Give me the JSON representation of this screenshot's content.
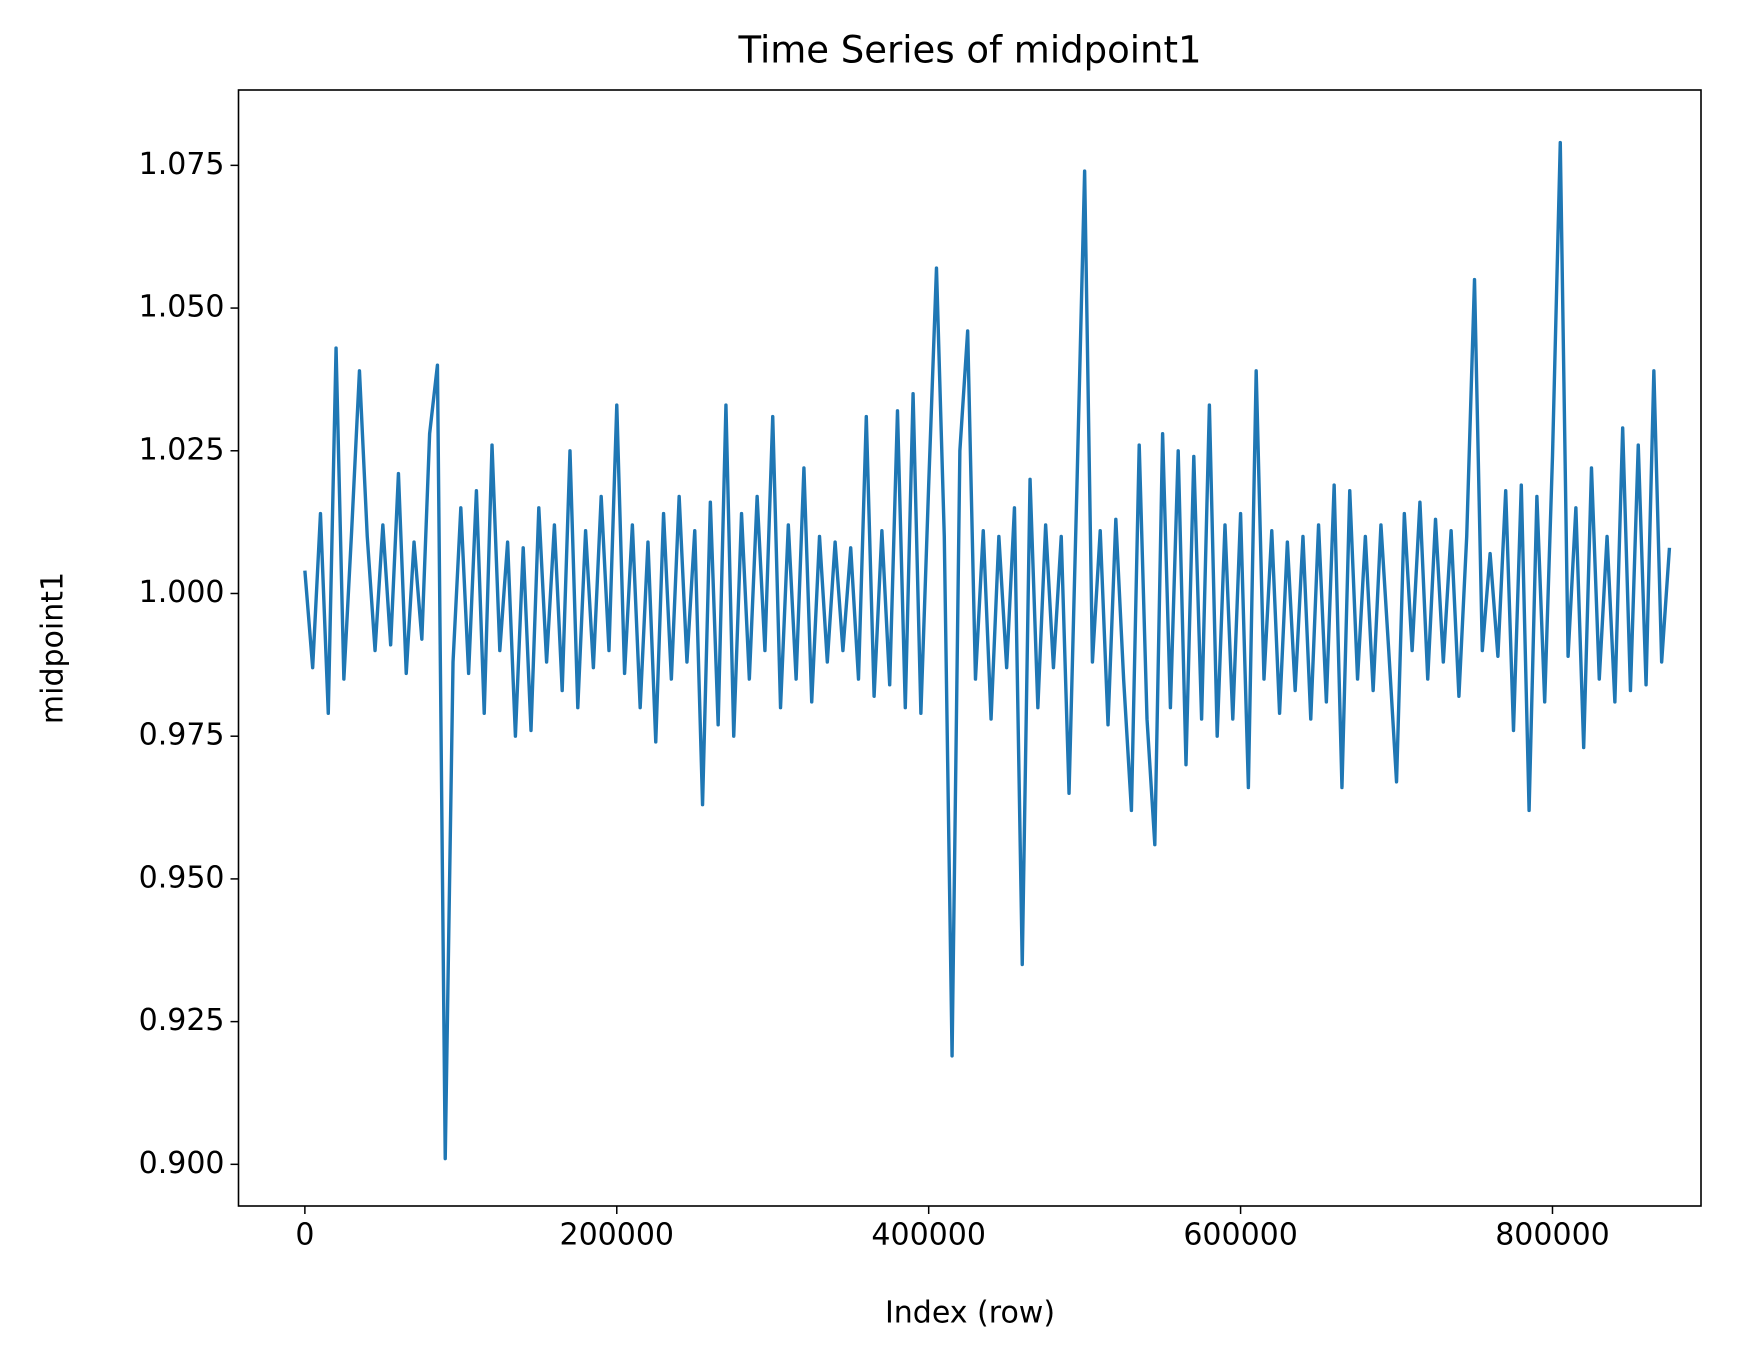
{
  "chart_data": {
    "type": "line",
    "title": "Time Series of midpoint1",
    "xlabel": "Index (row)",
    "ylabel": "midpoint1",
    "xlim": [
      -42560,
      895230
    ],
    "ylim": [
      0.8927,
      1.0882
    ],
    "xticks": [
      0,
      200000,
      400000,
      600000,
      800000
    ],
    "yticks": [
      {
        "value": 0.9,
        "label": "0.900"
      },
      0.925,
      {
        "value": 0.95,
        "label": "0.950"
      },
      0.975,
      {
        "value": 1.0,
        "label": "1.000"
      },
      1.025,
      {
        "value": 1.05,
        "label": "1.050"
      },
      1.075
    ],
    "grid": false,
    "x": [
      0,
      5000,
      10000,
      15000,
      20000,
      25000,
      30000,
      35000,
      40000,
      45000,
      50000,
      55000,
      60000,
      65000,
      70000,
      75000,
      80000,
      85000,
      90000,
      95000,
      100000,
      105000,
      110000,
      115000,
      120000,
      125000,
      130000,
      135000,
      140000,
      145000,
      150000,
      155000,
      160000,
      165000,
      170000,
      175000,
      180000,
      185000,
      190000,
      195000,
      200000,
      205000,
      210000,
      215000,
      220000,
      225000,
      230000,
      235000,
      240000,
      245000,
      250000,
      255000,
      260000,
      265000,
      270000,
      275000,
      280000,
      285000,
      290000,
      295000,
      300000,
      305000,
      310000,
      315000,
      320000,
      325000,
      330000,
      335000,
      340000,
      345000,
      350000,
      355000,
      360000,
      365000,
      370000,
      375000,
      380000,
      385000,
      390000,
      395000,
      400000,
      405000,
      410000,
      415000,
      420000,
      425000,
      430000,
      435000,
      440000,
      445000,
      450000,
      455000,
      460000,
      465000,
      470000,
      475000,
      480000,
      485000,
      490000,
      495000,
      500000,
      505000,
      510000,
      515000,
      520000,
      525000,
      530000,
      535000,
      540000,
      545000,
      550000,
      555000,
      560000,
      565000,
      570000,
      575000,
      580000,
      585000,
      590000,
      595000,
      600000,
      605000,
      610000,
      615000,
      620000,
      625000,
      630000,
      635000,
      640000,
      645000,
      650000,
      655000,
      660000,
      665000,
      670000,
      675000,
      680000,
      685000,
      690000,
      695000,
      700000,
      705000,
      710000,
      715000,
      720000,
      725000,
      730000,
      735000,
      740000,
      745000,
      750000,
      755000,
      760000,
      765000,
      770000,
      775000,
      780000,
      785000,
      790000,
      795000,
      800000,
      805000,
      810000,
      815000,
      820000,
      825000,
      830000,
      835000,
      840000,
      845000,
      850000,
      855000,
      860000,
      865000,
      870000,
      875000
    ],
    "series": [
      {
        "name": "midpoint1",
        "color": "#1f77b4",
        "values": [
          1.004,
          0.987,
          1.014,
          0.979,
          1.043,
          0.985,
          1.011,
          1.039,
          1.01,
          0.99,
          1.012,
          0.991,
          1.021,
          0.986,
          1.009,
          0.992,
          1.028,
          1.04,
          0.901,
          0.988,
          1.015,
          0.986,
          1.018,
          0.979,
          1.026,
          0.99,
          1.009,
          0.975,
          1.008,
          0.976,
          1.015,
          0.988,
          1.012,
          0.983,
          1.025,
          0.98,
          1.011,
          0.987,
          1.017,
          0.99,
          1.033,
          0.986,
          1.012,
          0.98,
          1.009,
          0.974,
          1.014,
          0.985,
          1.017,
          0.988,
          1.011,
          0.963,
          1.016,
          0.977,
          1.033,
          0.975,
          1.014,
          0.985,
          1.017,
          0.99,
          1.031,
          0.98,
          1.012,
          0.985,
          1.022,
          0.981,
          1.01,
          0.988,
          1.009,
          0.99,
          1.008,
          0.985,
          1.031,
          0.982,
          1.011,
          0.984,
          1.032,
          0.98,
          1.035,
          0.979,
          1.019,
          1.057,
          1.01,
          0.919,
          1.025,
          1.046,
          0.985,
          1.011,
          0.978,
          1.01,
          0.987,
          1.015,
          0.935,
          1.02,
          0.98,
          1.012,
          0.987,
          1.01,
          0.965,
          1.018,
          1.074,
          0.988,
          1.011,
          0.977,
          1.013,
          0.985,
          0.962,
          1.026,
          0.978,
          0.956,
          1.028,
          0.98,
          1.025,
          0.97,
          1.024,
          0.978,
          1.033,
          0.975,
          1.012,
          0.978,
          1.014,
          0.966,
          1.039,
          0.985,
          1.011,
          0.979,
          1.009,
          0.983,
          1.01,
          0.978,
          1.012,
          0.981,
          1.019,
          0.966,
          1.018,
          0.985,
          1.01,
          0.983,
          1.012,
          0.99,
          0.967,
          1.014,
          0.99,
          1.016,
          0.985,
          1.013,
          0.988,
          1.011,
          0.982,
          1.01,
          1.055,
          0.99,
          1.007,
          0.989,
          1.018,
          0.976,
          1.019,
          0.962,
          1.017,
          0.981,
          1.024,
          1.079,
          0.989,
          1.015,
          0.973,
          1.022,
          0.985,
          1.01,
          0.981,
          1.029,
          0.983,
          1.026,
          0.984,
          1.039,
          0.988,
          1.008
        ]
      }
    ]
  }
}
